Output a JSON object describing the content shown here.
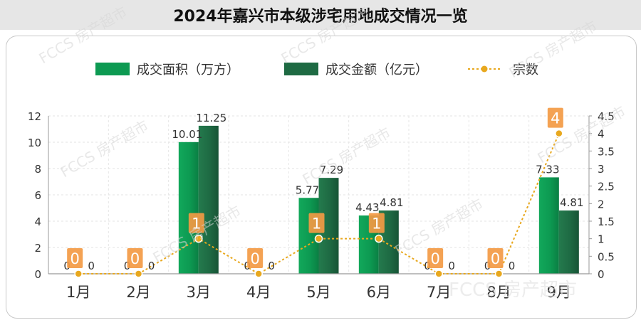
{
  "title": "2024年嘉兴市本级涉宅用地成交情况一览",
  "watermark": "房产超市",
  "colors": {
    "area": "#0d9a52",
    "amount": "#1e6a43",
    "count_line": "#e8a81e",
    "count_label_bg": "#f39a44"
  },
  "chart_data": {
    "type": "bar",
    "categories": [
      "1月",
      "2月",
      "3月",
      "4月",
      "5月",
      "6月",
      "7月",
      "8月",
      "9月"
    ],
    "series": [
      {
        "name": "成交面积（万方）",
        "type": "bar",
        "axis": "left",
        "values": [
          0,
          0,
          10.01,
          0,
          5.77,
          4.43,
          0,
          0,
          7.33
        ],
        "labels": [
          "0",
          "0",
          "10.01",
          "0",
          "5.77",
          "4.43",
          "0",
          "0",
          "7.33"
        ]
      },
      {
        "name": "成交金额（亿元）",
        "type": "bar",
        "axis": "left",
        "values": [
          0,
          0,
          11.25,
          0,
          7.29,
          4.81,
          0,
          0,
          4.81
        ],
        "labels": [
          "0",
          "0",
          "11.25",
          "0",
          "7.29",
          "4.81",
          "0",
          "0",
          "4.81"
        ]
      },
      {
        "name": "宗数",
        "type": "line",
        "axis": "right",
        "values": [
          0,
          0,
          1,
          0,
          1,
          1,
          0,
          0,
          4
        ],
        "labels": [
          "0",
          "0",
          "1",
          "0",
          "1",
          "1",
          "0",
          "0",
          "4"
        ]
      }
    ],
    "y_left": {
      "min": 0,
      "max": 12,
      "ticks": [
        "0",
        "2",
        "4",
        "6",
        "8",
        "10",
        "12"
      ]
    },
    "y_right": {
      "min": 0,
      "max": 4.5,
      "ticks": [
        "0",
        "0.5",
        "1",
        "1.5",
        "2",
        "2.5",
        "3",
        "3.5",
        "4",
        "4.5"
      ]
    },
    "grid": true,
    "legend_position": "top"
  }
}
